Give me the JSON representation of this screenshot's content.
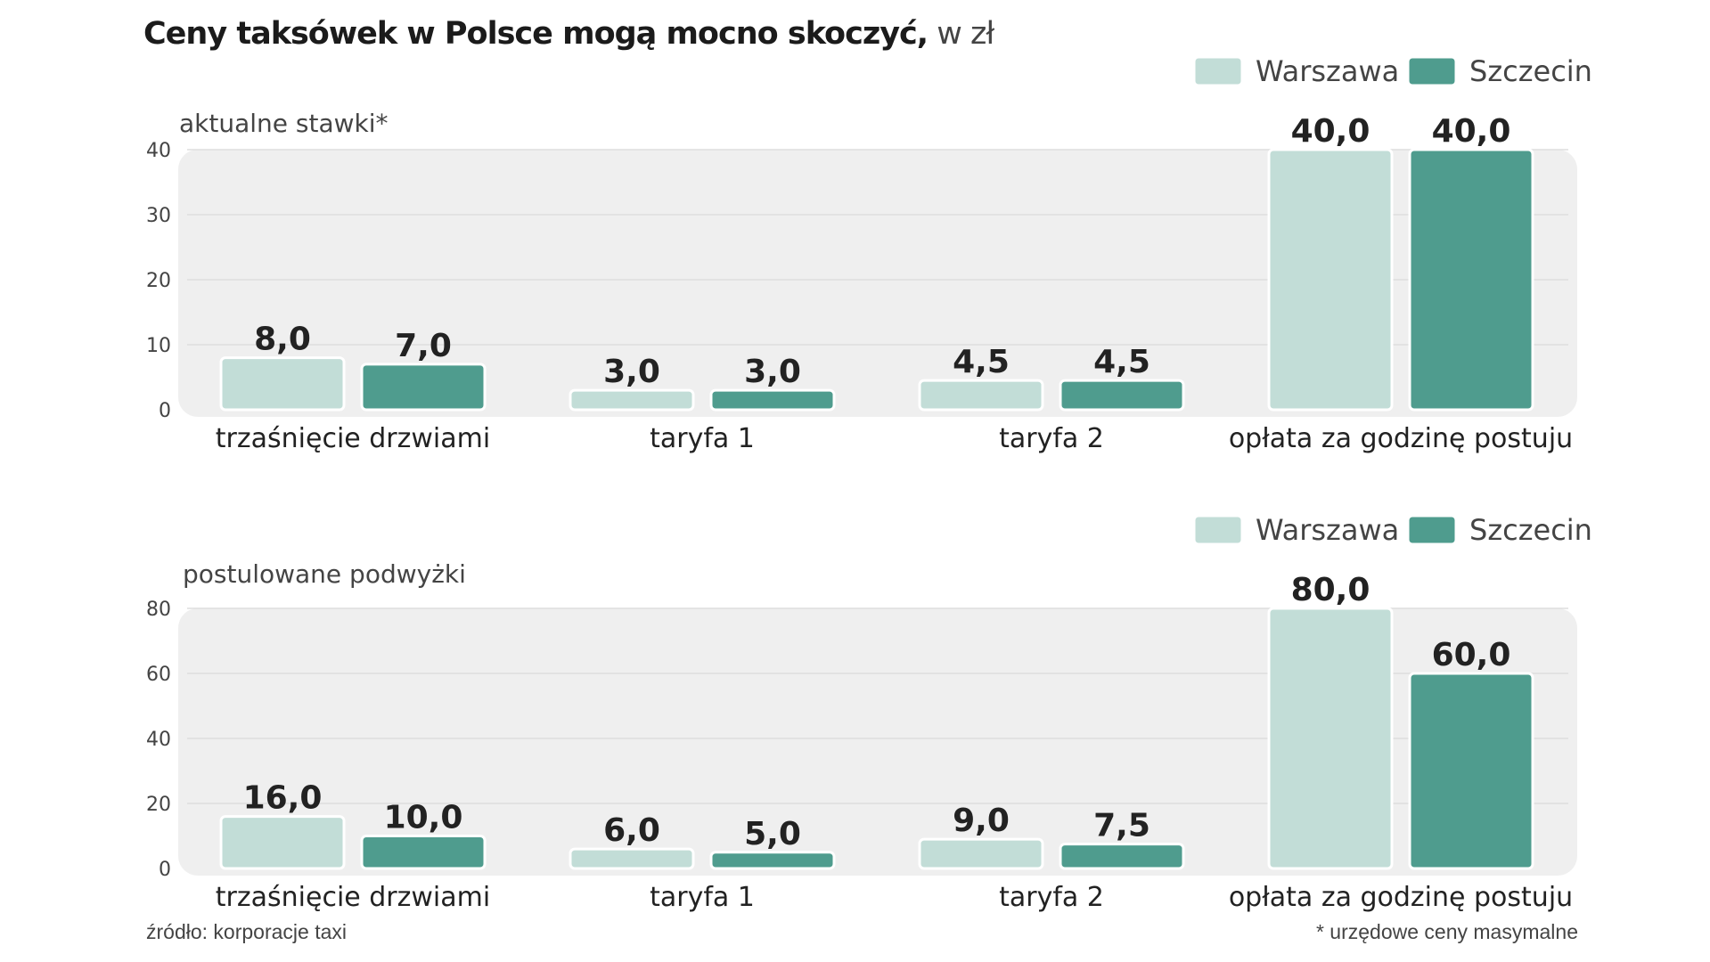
{
  "title": {
    "main": "Ceny taksówek w Polsce mogą mocno skoczyć,",
    "unit": " w zł"
  },
  "chart_data": [
    {
      "type": "bar",
      "subtitle": "aktualne stawki*",
      "categories": [
        "trzaśnięcie drzwiami",
        "taryfa 1",
        "taryfa 2",
        "opłata za godzinę postuju"
      ],
      "series": [
        {
          "name": "Warszawa",
          "values": [
            8.0,
            3.0,
            4.5,
            40.0
          ],
          "labels": [
            "8,0",
            "3,0",
            "4,5",
            "40,0"
          ],
          "color": "#c2ddd7"
        },
        {
          "name": "Szczecin",
          "values": [
            7.0,
            3.0,
            4.5,
            40.0
          ],
          "labels": [
            "7,0",
            "3,0",
            "4,5",
            "40,0"
          ],
          "color": "#4f9c8e"
        }
      ],
      "yticks": [
        "0",
        "10",
        "20",
        "30",
        "40"
      ],
      "ylim": [
        0,
        40
      ],
      "grid": true,
      "legend": "top-right"
    },
    {
      "type": "bar",
      "subtitle": "postulowane podwyżki",
      "categories": [
        "trzaśnięcie drzwiami",
        "taryfa 1",
        "taryfa 2",
        "opłata za godzinę postuju"
      ],
      "series": [
        {
          "name": "Warszawa",
          "values": [
            16.0,
            6.0,
            9.0,
            80.0
          ],
          "labels": [
            "16,0",
            "6,0",
            "9,0",
            "80,0"
          ],
          "color": "#c2ddd7"
        },
        {
          "name": "Szczecin",
          "values": [
            10.0,
            5.0,
            7.5,
            60.0
          ],
          "labels": [
            "10,0",
            "5,0",
            "7,5",
            "60,0"
          ],
          "color": "#4f9c8e"
        }
      ],
      "yticks": [
        "0",
        "20",
        "40",
        "60",
        "80"
      ],
      "ylim": [
        0,
        80
      ],
      "grid": true,
      "legend": "top-right"
    }
  ],
  "footer": {
    "source": "źródło: korporacje taxi",
    "note": "* urzędowe ceny masymalne"
  }
}
